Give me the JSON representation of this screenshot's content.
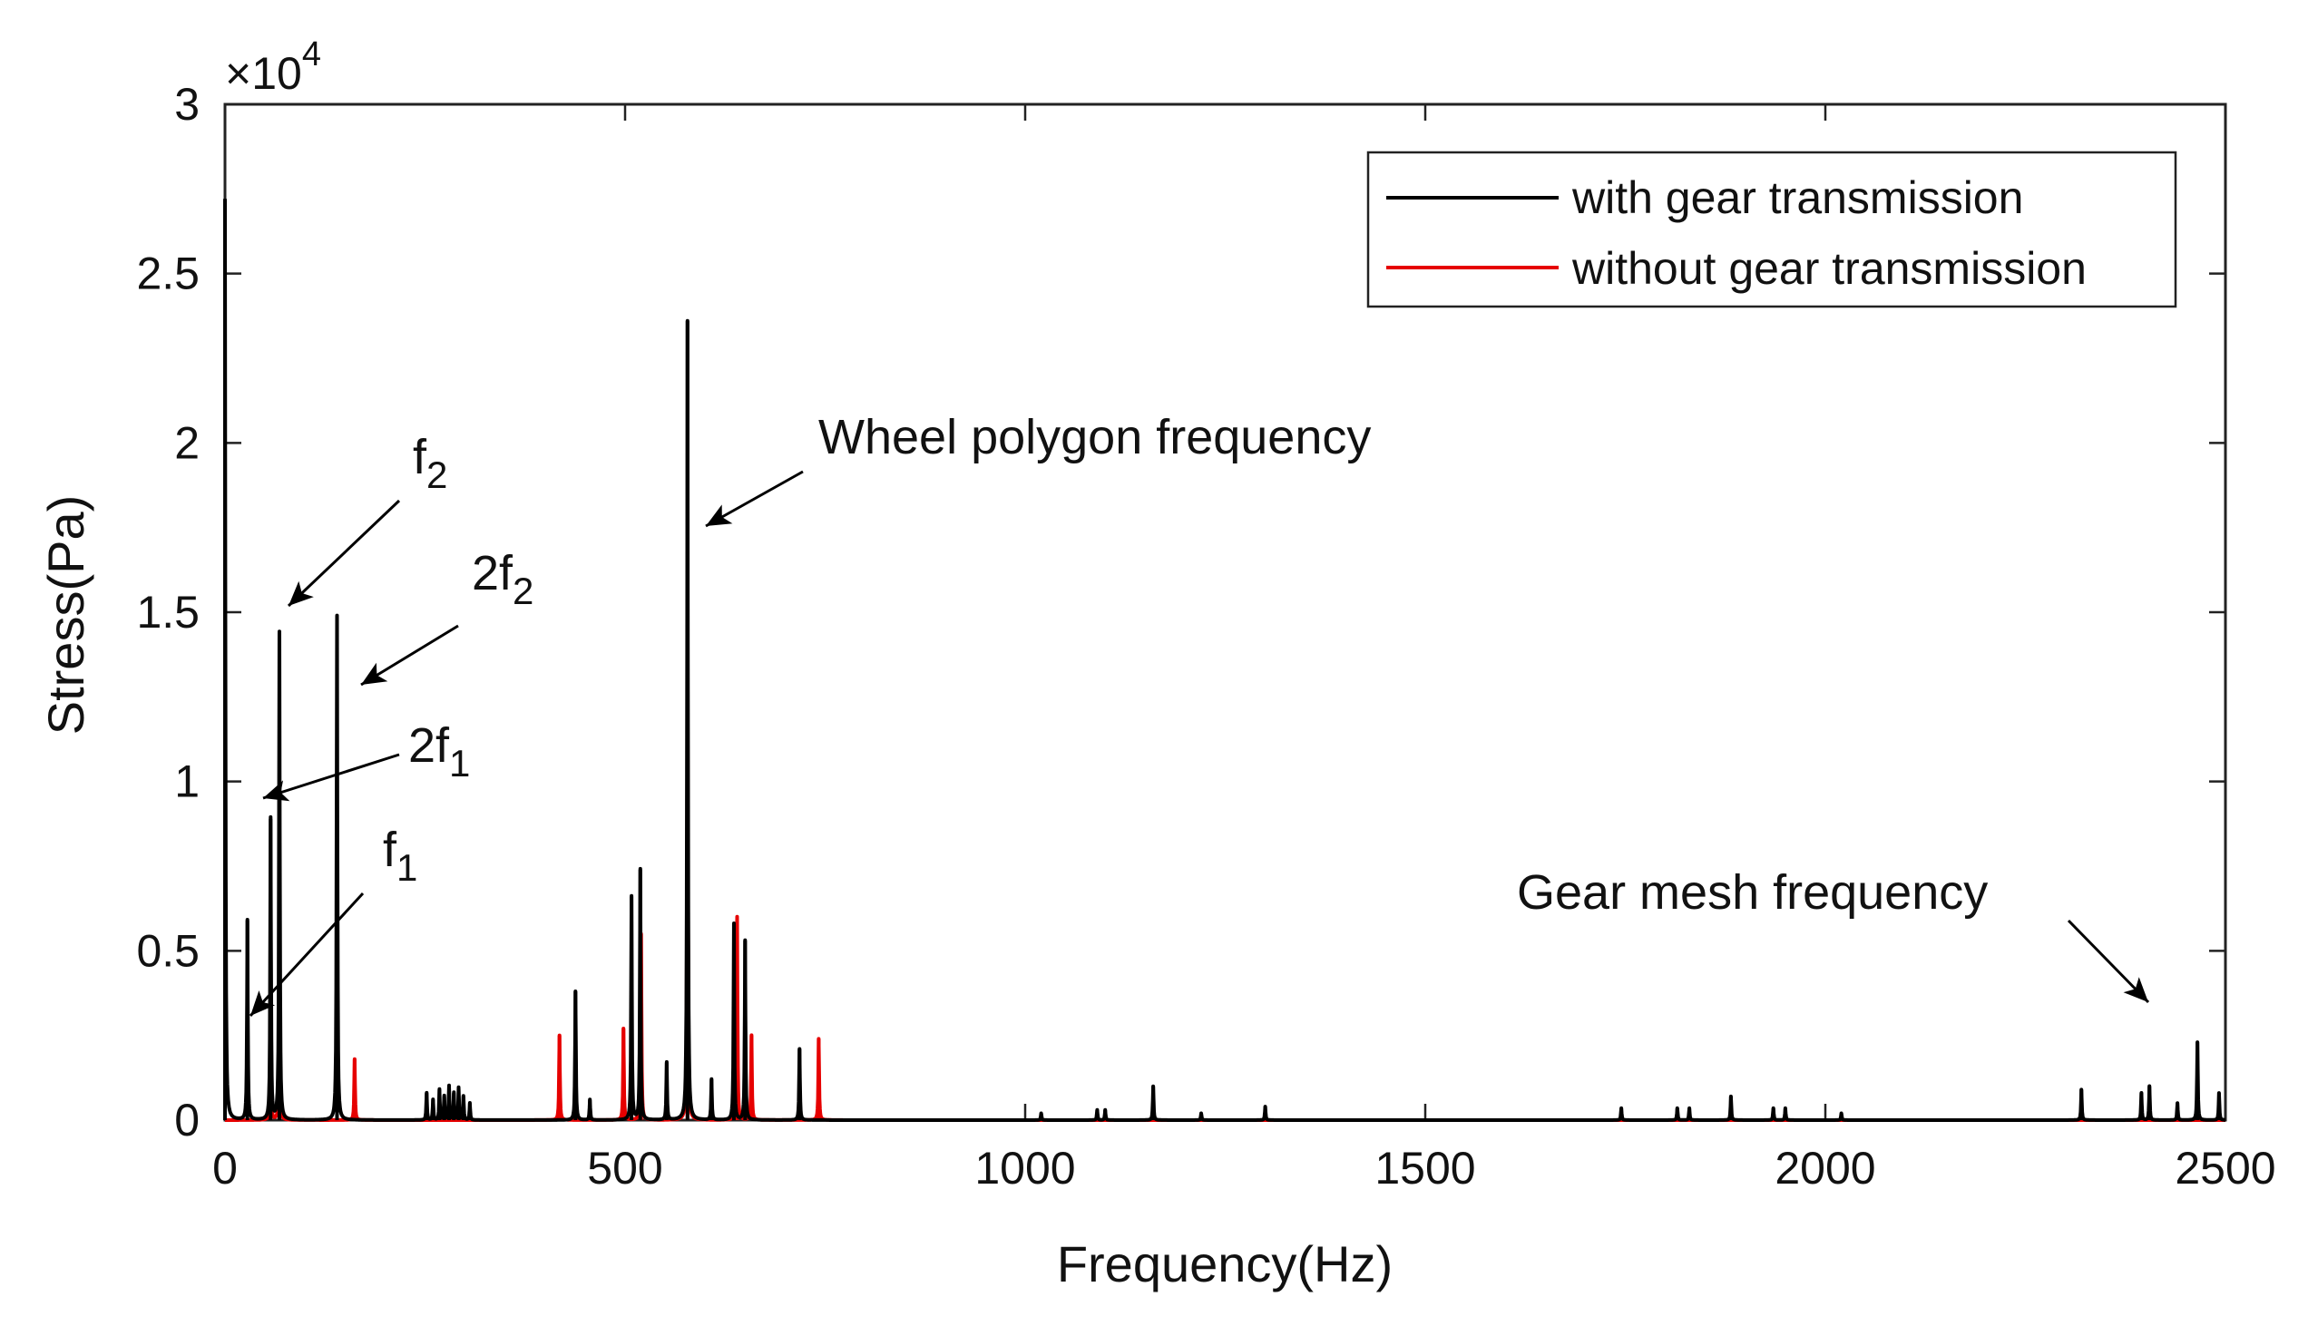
{
  "chart_data": {
    "type": "line",
    "title": "",
    "xlabel": "Frequency(Hz)",
    "ylabel": "Stress(Pa)",
    "xlim": [
      0,
      2500
    ],
    "ylim": [
      0,
      30000
    ],
    "exponent_label": "×10",
    "exponent_power": "4",
    "x_ticks": [
      0,
      500,
      1000,
      1500,
      2000,
      2500
    ],
    "x_tick_labels": [
      "0",
      "500",
      "1000",
      "1500",
      "2000",
      "2500"
    ],
    "y_ticks": [
      0,
      5000,
      10000,
      15000,
      20000,
      25000,
      30000
    ],
    "y_tick_labels": [
      "0",
      "0.5",
      "1",
      "1.5",
      "2",
      "2.5",
      "3"
    ],
    "legend": {
      "position": "top-right",
      "entries": [
        {
          "label": "with gear transmission",
          "color": "#000000"
        },
        {
          "label": "without gear transmission",
          "color": "#e60000"
        }
      ]
    },
    "series": [
      {
        "name": "with gear transmission",
        "color": "#000000",
        "peaks": [
          {
            "x": 0,
            "y": 27200
          },
          {
            "x": 28,
            "y": 5900
          },
          {
            "x": 57,
            "y": 8900
          },
          {
            "x": 68,
            "y": 14400
          },
          {
            "x": 140,
            "y": 14900
          },
          {
            "x": 252,
            "y": 800
          },
          {
            "x": 260,
            "y": 600
          },
          {
            "x": 268,
            "y": 900
          },
          {
            "x": 274,
            "y": 700
          },
          {
            "x": 280,
            "y": 1000
          },
          {
            "x": 286,
            "y": 800
          },
          {
            "x": 292,
            "y": 950
          },
          {
            "x": 298,
            "y": 700
          },
          {
            "x": 306,
            "y": 500
          },
          {
            "x": 438,
            "y": 3800
          },
          {
            "x": 456,
            "y": 600
          },
          {
            "x": 508,
            "y": 6600
          },
          {
            "x": 519,
            "y": 7400
          },
          {
            "x": 552,
            "y": 1700
          },
          {
            "x": 578,
            "y": 23600
          },
          {
            "x": 608,
            "y": 1200
          },
          {
            "x": 636,
            "y": 5800
          },
          {
            "x": 650,
            "y": 5300
          },
          {
            "x": 718,
            "y": 2100
          },
          {
            "x": 1020,
            "y": 200
          },
          {
            "x": 1090,
            "y": 300
          },
          {
            "x": 1100,
            "y": 300
          },
          {
            "x": 1160,
            "y": 1000
          },
          {
            "x": 1220,
            "y": 200
          },
          {
            "x": 1300,
            "y": 400
          },
          {
            "x": 1745,
            "y": 350
          },
          {
            "x": 1815,
            "y": 350
          },
          {
            "x": 1830,
            "y": 350
          },
          {
            "x": 1882,
            "y": 700
          },
          {
            "x": 1935,
            "y": 350
          },
          {
            "x": 1950,
            "y": 350
          },
          {
            "x": 2020,
            "y": 200
          },
          {
            "x": 2320,
            "y": 900
          },
          {
            "x": 2395,
            "y": 800
          },
          {
            "x": 2405,
            "y": 1000
          },
          {
            "x": 2440,
            "y": 500
          },
          {
            "x": 2465,
            "y": 2300
          },
          {
            "x": 2492,
            "y": 800
          }
        ]
      },
      {
        "name": "without gear transmission",
        "color": "#e60000",
        "peaks": [
          {
            "x": 57,
            "y": 2900
          },
          {
            "x": 68,
            "y": 4600
          },
          {
            "x": 162,
            "y": 1800
          },
          {
            "x": 418,
            "y": 2500
          },
          {
            "x": 498,
            "y": 2700
          },
          {
            "x": 520,
            "y": 5500
          },
          {
            "x": 578,
            "y": 14400
          },
          {
            "x": 640,
            "y": 6000
          },
          {
            "x": 658,
            "y": 2500
          },
          {
            "x": 742,
            "y": 2400
          }
        ]
      }
    ],
    "annotations": [
      {
        "text": "f",
        "sub": "2",
        "target": [
          68,
          15000
        ]
      },
      {
        "text": "2f",
        "sub": "2",
        "target": [
          140,
          13500
        ]
      },
      {
        "text": "2f",
        "sub": "1",
        "target": [
          57,
          9600
        ]
      },
      {
        "text": "f",
        "sub": "1",
        "target": [
          28,
          3100
        ]
      },
      {
        "text": "Wheel polygon frequency",
        "sub": "",
        "target": [
          600,
          17700
        ]
      },
      {
        "text": "Gear mesh frequency",
        "sub": "",
        "target": [
          2455,
          3500
        ]
      }
    ]
  }
}
